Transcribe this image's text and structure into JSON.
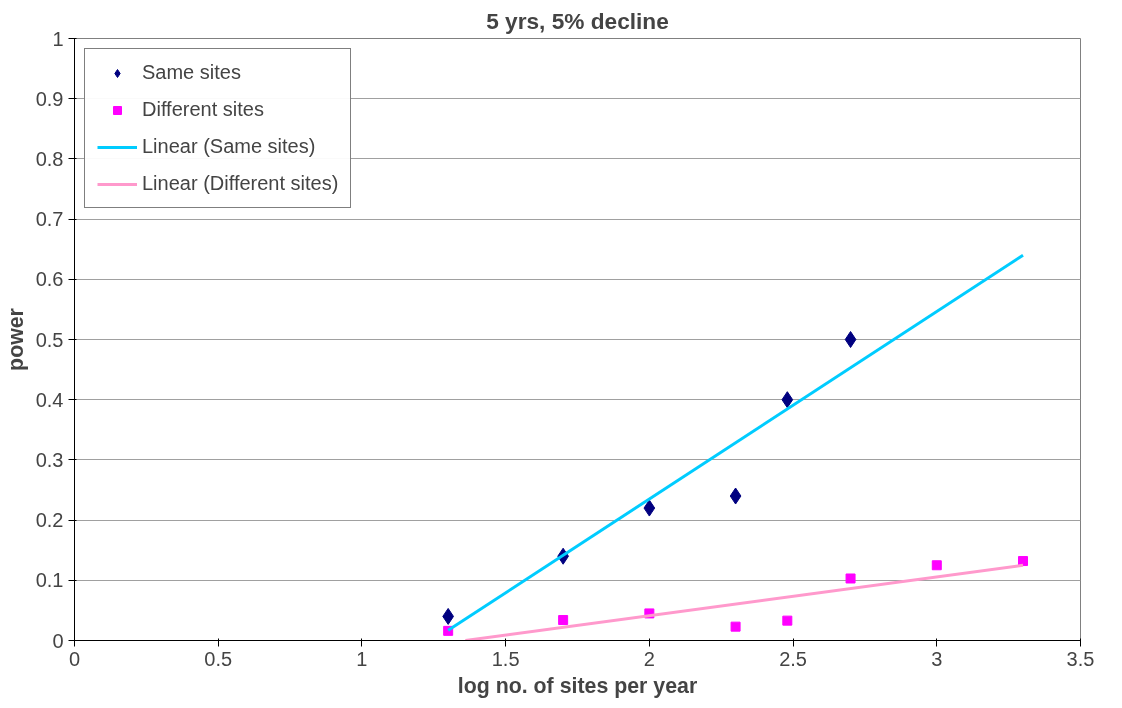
{
  "chart_data": {
    "type": "scatter",
    "title": "5 yrs, 5% decline",
    "xlabel": "log no. of sites per year",
    "ylabel": "power",
    "xlim": [
      0,
      3.5
    ],
    "xticks": [
      0,
      {
        "value": 0.5,
        "label": "0.5"
      },
      1,
      {
        "value": 1.5,
        "label": "1.5"
      },
      2,
      {
        "value": 2.5,
        "label": "2.5"
      },
      3,
      {
        "value": 3.5,
        "label": "3.5"
      }
    ],
    "ylim": [
      0,
      1
    ],
    "yticks": [
      0,
      0.1,
      0.2,
      0.3,
      0.4,
      0.5,
      0.6,
      0.7,
      0.8,
      0.9,
      1
    ],
    "grid": "y",
    "legend": "top left",
    "series": [
      {
        "name": "Same sites",
        "marker": "diamond",
        "color": "#000080",
        "x": [
          1.3,
          1.7,
          2.0,
          2.3,
          2.48,
          2.7
        ],
        "values": [
          0.04,
          0.14,
          0.22,
          0.24,
          0.4,
          0.5
        ]
      },
      {
        "name": "Different sites",
        "marker": "square",
        "color": "#ff00ff",
        "x": [
          1.3,
          1.7,
          2.0,
          2.3,
          2.48,
          2.7,
          3.0,
          3.3
        ],
        "values": [
          0.016,
          0.034,
          0.045,
          0.023,
          0.033,
          0.103,
          0.125,
          0.132
        ]
      },
      {
        "name": "Linear (Same sites)",
        "type": "line",
        "line_style": "solid",
        "color": "#00ccff",
        "x": [
          1.3,
          3.3
        ],
        "values": [
          0.017,
          0.64
        ]
      },
      {
        "name": "Linear (Different sites)",
        "type": "line",
        "line_style": "solid",
        "color": "#ff99cc",
        "x": [
          1.36,
          3.3
        ],
        "values": [
          0,
          0.125
        ]
      }
    ]
  }
}
